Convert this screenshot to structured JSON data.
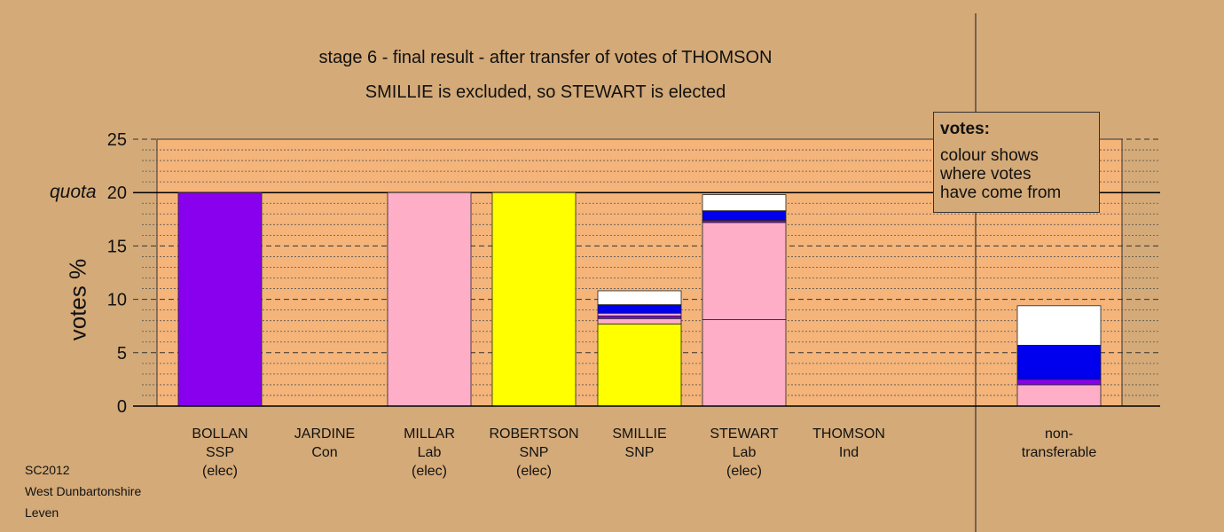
{
  "title": "stage 6 - final result - after transfer of votes of THOMSON",
  "subtitle": "SMILLIE is excluded, so STEWART is elected",
  "legend": {
    "title": "votes:",
    "lines": [
      "colour shows",
      "where votes",
      "have come from"
    ]
  },
  "footer": {
    "line1": "SC2012",
    "line2": "West Dunbartonshire",
    "line3": "Leven"
  },
  "colors": {
    "background": "#d4aa78",
    "plot_area": "#f4b47a",
    "SSP": "#8800ee",
    "Lab": "#ffaec8",
    "SNP": "#ffff00",
    "other_blue": "#0000ee",
    "white": "#ffffff"
  },
  "chart_data": {
    "type": "bar",
    "stacked": true,
    "ylabel": "votes %",
    "quota_label": "quota",
    "quota": 20,
    "ylim": [
      0,
      25
    ],
    "yticks": [
      0,
      5,
      10,
      15,
      20,
      25
    ],
    "grid": true,
    "candidates": [
      {
        "name": "BOLLAN",
        "party": "SSP",
        "status": "(elec)",
        "segments": [
          {
            "color": "#8800ee",
            "value": 20.0
          }
        ]
      },
      {
        "name": "JARDINE",
        "party": "Con",
        "status": "",
        "segments": []
      },
      {
        "name": "MILLAR",
        "party": "Lab",
        "status": "(elec)",
        "segments": [
          {
            "color": "#ffaec8",
            "value": 20.0
          }
        ]
      },
      {
        "name": "ROBERTSON",
        "party": "SNP",
        "status": "(elec)",
        "segments": [
          {
            "color": "#ffff00",
            "value": 20.0
          }
        ]
      },
      {
        "name": "SMILLIE",
        "party": "SNP",
        "status": "",
        "segments": [
          {
            "color": "#ffff00",
            "value": 7.7
          },
          {
            "color": "#ffaec8",
            "value": 0.5
          },
          {
            "color": "#8800ee",
            "value": 0.25
          },
          {
            "color": "#ffaec8",
            "value": 0.25
          },
          {
            "color": "#0000ee",
            "value": 0.8
          },
          {
            "color": "#ffffff",
            "value": 1.3
          }
        ]
      },
      {
        "name": "STEWART",
        "party": "Lab",
        "status": "(elec)",
        "segments": [
          {
            "color": "#ffaec8",
            "value": 8.1
          },
          {
            "color": "#ffaec8",
            "value": 9.1
          },
          {
            "color": "#8800ee",
            "value": 0.2
          },
          {
            "color": "#0000ee",
            "value": 0.9
          },
          {
            "color": "#ffffff",
            "value": 1.5
          }
        ]
      },
      {
        "name": "THOMSON",
        "party": "Ind",
        "status": "",
        "segments": []
      },
      {
        "name": "non-",
        "party": "transferable",
        "status": "",
        "segments": [
          {
            "color": "#ffaec8",
            "value": 2.0
          },
          {
            "color": "#8800ee",
            "value": 0.5
          },
          {
            "color": "#0000ee",
            "value": 3.2
          },
          {
            "color": "#ffffff",
            "value": 3.7
          }
        ]
      }
    ]
  }
}
